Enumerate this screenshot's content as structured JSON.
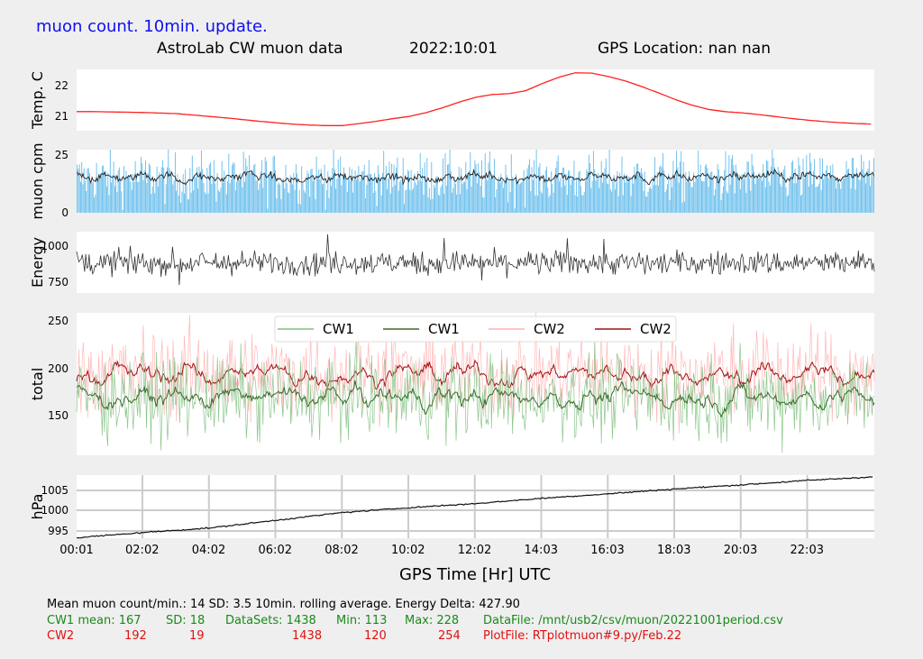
{
  "banner": "muon count.  10min. update.",
  "header": {
    "title": "AstroLab CW muon data",
    "date": "2022:10:01",
    "gps_location": "GPS Location: nan   nan"
  },
  "xaxis": {
    "label": "GPS Time  [Hr] UTC",
    "ticks": [
      "00:01",
      "02:02",
      "04:02",
      "06:02",
      "08:02",
      "10:02",
      "12:02",
      "14:03",
      "16:03",
      "18:03",
      "20:03",
      "22:03"
    ]
  },
  "chart_data": [
    {
      "type": "line",
      "ylabel": "Temp. C",
      "yticks": [
        "22",
        "21"
      ],
      "ylim": [
        20.55,
        22.7
      ],
      "series": [
        {
          "color": "#ff2020",
          "x": [
            0,
            0.5,
            1,
            1.5,
            2,
            2.5,
            3,
            3.5,
            4,
            4.5,
            5,
            5.5,
            6,
            6.5,
            7,
            7.5,
            8,
            8.5,
            9,
            9.5,
            10,
            10.5,
            11,
            11.5,
            12,
            12.5,
            13,
            13.5,
            14,
            14.5,
            15,
            15.5,
            16,
            16.5,
            17,
            17.5,
            18,
            18.5,
            19,
            19.5,
            20,
            20.5,
            21,
            21.5,
            22,
            22.5,
            23,
            23.5,
            24
          ],
          "values": [
            21.22,
            21.22,
            21.21,
            21.2,
            21.19,
            21.17,
            21.15,
            21.1,
            21.05,
            21.0,
            20.94,
            20.88,
            20.83,
            20.78,
            20.75,
            20.73,
            20.73,
            20.8,
            20.88,
            20.97,
            21.05,
            21.18,
            21.35,
            21.55,
            21.72,
            21.82,
            21.85,
            21.95,
            22.2,
            22.42,
            22.58,
            22.57,
            22.45,
            22.3,
            22.1,
            21.88,
            21.65,
            21.45,
            21.3,
            21.22,
            21.18,
            21.12,
            21.05,
            20.98,
            20.92,
            20.87,
            20.83,
            20.8,
            20.78
          ]
        }
      ]
    },
    {
      "type": "bar",
      "ylabel": "muon cpm",
      "yticks": [
        "25",
        "0"
      ],
      "ylim": [
        0,
        25
      ],
      "series": [
        {
          "name": "counts",
          "color": "#4ab0e8",
          "typical": 14,
          "sd": 3.5
        },
        {
          "name": "rolling average",
          "color": "#222222",
          "typical": 14
        }
      ]
    },
    {
      "type": "line",
      "ylabel": "Energy",
      "yticks": [
        "1000",
        "750"
      ],
      "ylim": [
        640,
        1110
      ],
      "series": [
        {
          "color": "#333333",
          "typical": 870,
          "sd": 45
        }
      ]
    },
    {
      "type": "line",
      "ylabel": "total",
      "yticks": [
        "250",
        "200",
        "150"
      ],
      "ylim": [
        105,
        257
      ],
      "legend": {
        "placement": "top",
        "entries": [
          "CW1",
          "CW1",
          "CW2",
          "CW2"
        ]
      },
      "series": [
        {
          "name": "CW1",
          "color": "#7fc07f",
          "style": "raw",
          "mean": 167,
          "sd": 18
        },
        {
          "name": "CW1",
          "color": "#3a6a2a",
          "style": "rolling",
          "mean": 167
        },
        {
          "name": "CW2",
          "color": "#ffb0b0",
          "style": "raw",
          "mean": 192,
          "sd": 19
        },
        {
          "name": "CW2",
          "color": "#a01010",
          "style": "rolling",
          "mean": 192
        }
      ]
    },
    {
      "type": "line",
      "ylabel": "hPa",
      "yticks": [
        "1005",
        "1000",
        "995"
      ],
      "ylim": [
        993.5,
        1009
      ],
      "grid": true,
      "series": [
        {
          "color": "#111111",
          "x": [
            0,
            2,
            4,
            6,
            8,
            10,
            12,
            14,
            16,
            18,
            20,
            22,
            24
          ],
          "values": [
            993.6,
            994.9,
            996.0,
            997.9,
            999.8,
            1001.0,
            1002.0,
            1003.3,
            1004.4,
            1005.6,
            1006.6,
            1007.7,
            1008.6
          ]
        }
      ]
    }
  ],
  "stats": {
    "line1": "Mean muon count/min.: 14  SD: 3.5   10min. rolling average.    Energy Delta:  427.90",
    "cw1": {
      "label": "CW1 mean: 167",
      "sd": "SD: 18",
      "datasets": "DataSets: 1438",
      "min": "Min: 113",
      "max": "Max: 228",
      "file": "DataFile: /mnt/usb2/csv/muon/20221001period.csv"
    },
    "cw2": {
      "label": "CW2",
      "mean": "192",
      "sd": "19",
      "datasets": "1438",
      "min": "120",
      "max": "254",
      "file": "PlotFile: RTplotmuon#9.py/Feb.22"
    }
  }
}
